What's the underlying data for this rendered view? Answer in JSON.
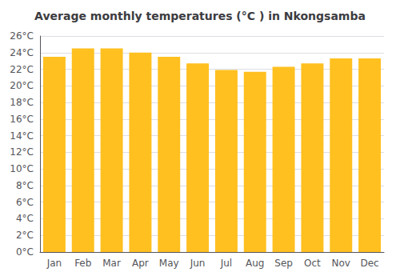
{
  "chart_data": {
    "type": "bar",
    "title": "Average monthly temperatures (°C ) in Nkongsamba",
    "categories": [
      "Jan",
      "Feb",
      "Mar",
      "Apr",
      "May",
      "Jun",
      "Jul",
      "Aug",
      "Sep",
      "Oct",
      "Nov",
      "Dec"
    ],
    "values": [
      23.5,
      24.5,
      24.5,
      24.0,
      23.5,
      22.7,
      21.9,
      21.7,
      22.3,
      22.7,
      23.3,
      23.3
    ],
    "color": "#FFC020",
    "ylim": [
      0,
      26
    ],
    "yticks": [
      {
        "value": 0,
        "label": "0°C"
      },
      {
        "value": 2,
        "label": "2°C"
      },
      {
        "value": 4,
        "label": "4°C"
      },
      {
        "value": 6,
        "label": "6°C"
      },
      {
        "value": 8,
        "label": "8°C"
      },
      {
        "value": 10,
        "label": "10°C"
      },
      {
        "value": 12,
        "label": "12°C"
      },
      {
        "value": 14,
        "label": "14°C"
      },
      {
        "value": 16,
        "label": "16°C"
      },
      {
        "value": 18,
        "label": "18°C"
      },
      {
        "value": 20,
        "label": "20°C"
      },
      {
        "value": 22,
        "label": "22°C"
      },
      {
        "value": 24,
        "label": "24°C"
      },
      {
        "value": 26,
        "label": "26°C"
      }
    ],
    "grid": true
  }
}
